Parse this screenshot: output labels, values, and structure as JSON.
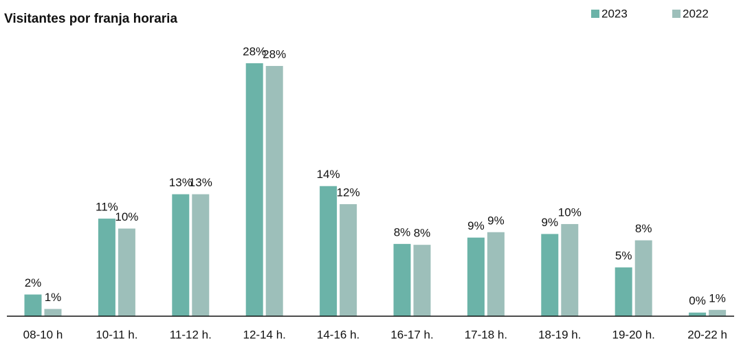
{
  "chart_data": {
    "type": "bar",
    "title": "Visitantes por franja horaria",
    "categories": [
      "08-10 h",
      "10-11 h.",
      "11-12 h.",
      "12-14 h.",
      "14-16 h.",
      "16-17 h.",
      "17-18 h.",
      "18-19 h.",
      "19-20 h.",
      "20-22 h"
    ],
    "series": [
      {
        "name": "2023",
        "color": "#6bb3a8",
        "values": [
          2.4,
          10.8,
          13.5,
          28.0,
          14.4,
          8.0,
          8.7,
          9.1,
          5.4,
          0.4
        ],
        "value_labels": [
          "2%",
          "11%",
          "13%",
          "28%",
          "14%",
          "8%",
          "9%",
          "9%",
          "5%",
          "0%"
        ]
      },
      {
        "name": "2022",
        "color": "#9dbfba",
        "values": [
          0.8,
          9.7,
          13.5,
          27.7,
          12.4,
          7.9,
          9.3,
          10.2,
          8.4,
          0.7
        ],
        "value_labels": [
          "1%",
          "10%",
          "13%",
          "28%",
          "12%",
          "8%",
          "9%",
          "10%",
          "8%",
          "1%"
        ]
      }
    ],
    "ylim": [
      0,
      28
    ],
    "legend": "top-right"
  }
}
